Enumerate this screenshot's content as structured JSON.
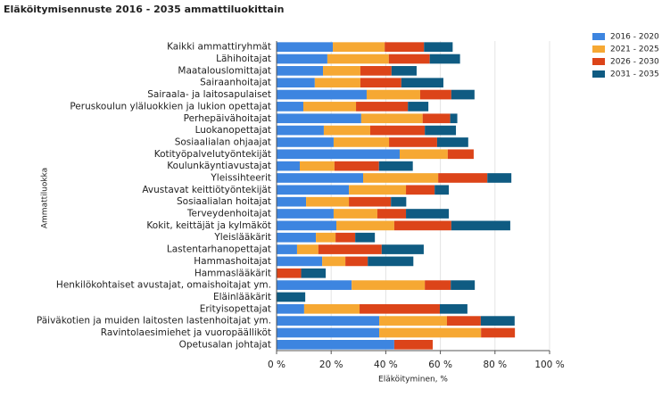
{
  "chart_data": {
    "type": "stacked-bar-horizontal",
    "title": "Eläköitymisennuste 2016 - 2035 ammattiluokittain",
    "y_label": "Ammattiluokka",
    "x_label": "Eläköityminen, %",
    "categories": [
      "Kaikki ammattiryhmät",
      "Lähihoitajat",
      "Maatalouslomittajat",
      "Sairaanhoitajat",
      "Sairaala- ja laitosapulaiset",
      "Peruskoulun yläluokkien ja lukion opettajat",
      "Perhepäivähoitajat",
      "Luokanopettajat",
      "Sosiaalialan ohjaajat",
      "Kotityöpalvelutyöntekijät",
      "Koulunkäyntiavustajat",
      "Yleissihteerit",
      "Avustavat keittiötyöntekijät",
      "Sosiaalialan hoitajat",
      "Terveydenhoitajat",
      "Kokit, keittäjät ja kylmäköt",
      "Yleislääkärit",
      "Lastentarhanopettajat",
      "Hammashoitajat",
      "Hammaslääkärit",
      "Henkilökohtaiset avustajat, omaishoitajat ym.",
      "Eläinlääkärit",
      "Erityisopettajat",
      "Päiväkotien ja muiden laitosten lastenhoitajat ym.",
      "Ravintolaesimiehet ja vuoropäälliköt",
      "Opetusalan johtajat"
    ],
    "series": [
      {
        "name": "2016 - 2020",
        "color": "#3d85e0",
        "values": [
          20.6,
          18.6,
          17,
          14,
          33,
          9.8,
          31,
          17.3,
          20.9,
          45.1,
          8.5,
          31.7,
          26.5,
          10.8,
          20.9,
          21.9,
          14.4,
          7.5,
          16.7,
          0,
          27.5,
          0,
          10.1,
          37.6,
          37.6,
          43.1
        ]
      },
      {
        "name": "2021 - 2025",
        "color": "#f6a833",
        "values": [
          19,
          22.5,
          13.7,
          16.7,
          19.6,
          19.3,
          22.5,
          17,
          20.3,
          17.6,
          12.7,
          27.5,
          20.9,
          15.7,
          16,
          21.2,
          7.2,
          7.8,
          8.5,
          0,
          26.8,
          0,
          20.3,
          24.8,
          37.3,
          0
        ]
      },
      {
        "name": "2026 - 2030",
        "color": "#dc4419",
        "values": [
          14.4,
          15,
          11.4,
          15,
          11.4,
          19,
          10.1,
          20,
          17.6,
          9.5,
          16.3,
          18,
          10.5,
          15.4,
          10.5,
          20.9,
          7.2,
          23.2,
          8.2,
          9,
          9.5,
          0,
          29.4,
          12.4,
          12.4,
          14.1
        ]
      },
      {
        "name": "2031 - 2035",
        "color": "#0f5b82",
        "values": [
          10.5,
          11.1,
          9.2,
          15.4,
          8.5,
          7.5,
          2.6,
          11.4,
          11.4,
          0,
          12.4,
          8.8,
          5.2,
          5.6,
          15.7,
          21.6,
          7.2,
          15.4,
          16.7,
          9,
          8.8,
          10.5,
          10.1,
          12.4,
          0,
          0
        ]
      }
    ],
    "xlim": [
      0,
      100
    ],
    "xticks": [
      {
        "value": 0,
        "label": "0 %"
      },
      {
        "value": 20,
        "label": "20 %"
      },
      {
        "value": 40,
        "label": "40 %"
      },
      {
        "value": 60,
        "label": "60 %"
      },
      {
        "value": 80,
        "label": "80 %"
      },
      {
        "value": 100,
        "label": "100 %"
      }
    ],
    "grid": true,
    "legend": "top-right"
  }
}
